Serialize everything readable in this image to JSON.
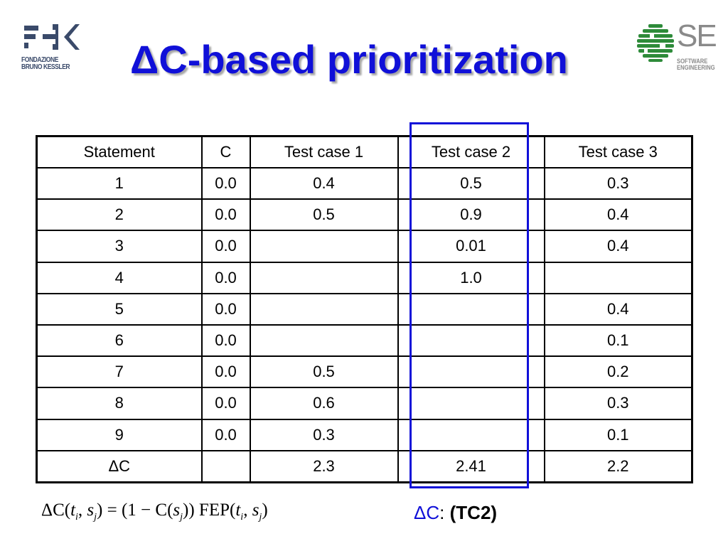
{
  "title": "ΔC-based prioritization",
  "logo_left": {
    "line1": "FONDAZIONE",
    "line2": "BRUNO KESSLER",
    "color": "#3a4a6a"
  },
  "logo_right": {
    "letters": "SE",
    "line1": "SOFTWARE",
    "line2": "ENGINEERING",
    "globe_color": "#2e8b3a"
  },
  "table": {
    "headers": [
      "Statement",
      "C",
      "Test case 1",
      "Test case 2",
      "Test case 3"
    ],
    "rows": [
      [
        "1",
        "0.0",
        "0.4",
        "0.5",
        "0.3"
      ],
      [
        "2",
        "0.0",
        "0.5",
        "0.9",
        "0.4"
      ],
      [
        "3",
        "0.0",
        "",
        "0.01",
        "0.4"
      ],
      [
        "4",
        "0.0",
        "",
        "1.0",
        ""
      ],
      [
        "5",
        "0.0",
        "",
        "",
        "0.4"
      ],
      [
        "6",
        "0.0",
        "",
        "",
        "0.1"
      ],
      [
        "7",
        "0.0",
        "0.5",
        "",
        "0.2"
      ],
      [
        "8",
        "0.0",
        "0.6",
        "",
        "0.3"
      ],
      [
        "9",
        "0.0",
        "0.3",
        "",
        "0.1"
      ],
      [
        "ΔC",
        "",
        "2.3",
        "2.41",
        "2.2"
      ]
    ],
    "highlight_color": "#1010d8"
  },
  "formula": "ΔC(ti, sj) = (1 − C(sj)) FEP(ti, sj)",
  "result": {
    "label": "ΔC",
    "separator": ":",
    "value": "(TC2)"
  },
  "colors": {
    "title": "#1010d8",
    "accent": "#1010d8"
  }
}
